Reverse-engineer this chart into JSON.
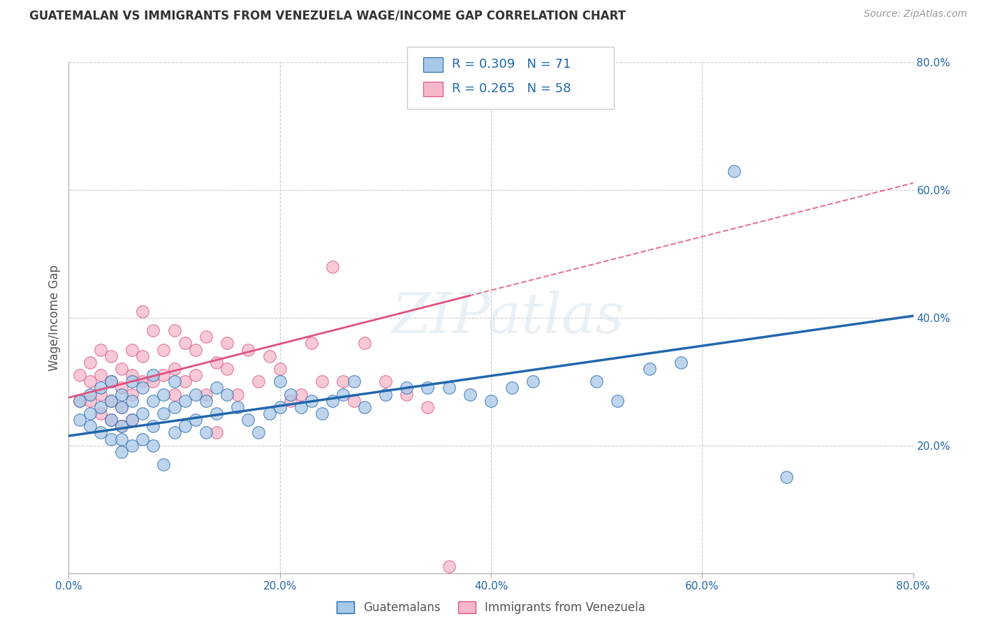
{
  "title": "GUATEMALAN VS IMMIGRANTS FROM VENEZUELA WAGE/INCOME GAP CORRELATION CHART",
  "source": "Source: ZipAtlas.com",
  "ylabel": "Wage/Income Gap",
  "x_min": 0.0,
  "x_max": 0.8,
  "y_min": 0.0,
  "y_max": 0.8,
  "x_ticks": [
    0.0,
    0.2,
    0.4,
    0.6,
    0.8
  ],
  "x_tick_labels": [
    "0.0%",
    "20.0%",
    "40.0%",
    "60.0%",
    "80.0%"
  ],
  "y_ticks": [
    0.2,
    0.4,
    0.6,
    0.8
  ],
  "y_tick_labels": [
    "20.0%",
    "40.0%",
    "60.0%",
    "80.0%"
  ],
  "blue_color": "#a8c8e8",
  "pink_color": "#f4b8c8",
  "blue_line_color": "#2166ac",
  "pink_line_color": "#e05080",
  "R_blue": 0.309,
  "N_blue": 71,
  "R_pink": 0.265,
  "N_pink": 58,
  "legend_label_blue": "Guatemalans",
  "legend_label_pink": "Immigrants from Venezuela",
  "watermark": "ZIPatlas",
  "blue_intercept": 0.215,
  "blue_slope": 0.235,
  "pink_intercept": 0.275,
  "pink_slope": 0.42,
  "blue_x": [
    0.01,
    0.01,
    0.02,
    0.02,
    0.02,
    0.03,
    0.03,
    0.03,
    0.04,
    0.04,
    0.04,
    0.04,
    0.05,
    0.05,
    0.05,
    0.05,
    0.05,
    0.06,
    0.06,
    0.06,
    0.06,
    0.07,
    0.07,
    0.07,
    0.08,
    0.08,
    0.08,
    0.08,
    0.09,
    0.09,
    0.09,
    0.1,
    0.1,
    0.1,
    0.11,
    0.11,
    0.12,
    0.12,
    0.13,
    0.13,
    0.14,
    0.14,
    0.15,
    0.16,
    0.17,
    0.18,
    0.19,
    0.2,
    0.2,
    0.21,
    0.22,
    0.23,
    0.24,
    0.25,
    0.26,
    0.27,
    0.28,
    0.3,
    0.32,
    0.34,
    0.36,
    0.38,
    0.4,
    0.42,
    0.44,
    0.5,
    0.52,
    0.55,
    0.58,
    0.63,
    0.68
  ],
  "blue_y": [
    0.27,
    0.24,
    0.28,
    0.25,
    0.23,
    0.29,
    0.26,
    0.22,
    0.3,
    0.27,
    0.24,
    0.21,
    0.28,
    0.26,
    0.23,
    0.21,
    0.19,
    0.3,
    0.27,
    0.24,
    0.2,
    0.29,
    0.25,
    0.21,
    0.31,
    0.27,
    0.23,
    0.2,
    0.28,
    0.25,
    0.17,
    0.3,
    0.26,
    0.22,
    0.27,
    0.23,
    0.28,
    0.24,
    0.27,
    0.22,
    0.29,
    0.25,
    0.28,
    0.26,
    0.24,
    0.22,
    0.25,
    0.3,
    0.26,
    0.28,
    0.26,
    0.27,
    0.25,
    0.27,
    0.28,
    0.3,
    0.26,
    0.28,
    0.29,
    0.29,
    0.29,
    0.28,
    0.27,
    0.29,
    0.3,
    0.3,
    0.27,
    0.32,
    0.33,
    0.63,
    0.15
  ],
  "pink_x": [
    0.01,
    0.01,
    0.02,
    0.02,
    0.02,
    0.03,
    0.03,
    0.03,
    0.03,
    0.04,
    0.04,
    0.04,
    0.04,
    0.05,
    0.05,
    0.05,
    0.05,
    0.06,
    0.06,
    0.06,
    0.06,
    0.07,
    0.07,
    0.07,
    0.08,
    0.08,
    0.09,
    0.09,
    0.1,
    0.1,
    0.1,
    0.11,
    0.11,
    0.12,
    0.12,
    0.13,
    0.13,
    0.14,
    0.14,
    0.15,
    0.15,
    0.16,
    0.17,
    0.18,
    0.19,
    0.2,
    0.21,
    0.22,
    0.23,
    0.24,
    0.25,
    0.26,
    0.27,
    0.28,
    0.3,
    0.32,
    0.34,
    0.36
  ],
  "pink_y": [
    0.31,
    0.27,
    0.33,
    0.3,
    0.27,
    0.35,
    0.31,
    0.28,
    0.25,
    0.34,
    0.3,
    0.27,
    0.24,
    0.32,
    0.29,
    0.26,
    0.23,
    0.35,
    0.31,
    0.28,
    0.24,
    0.41,
    0.34,
    0.3,
    0.38,
    0.3,
    0.35,
    0.31,
    0.32,
    0.38,
    0.28,
    0.36,
    0.3,
    0.35,
    0.31,
    0.37,
    0.28,
    0.33,
    0.22,
    0.36,
    0.32,
    0.28,
    0.35,
    0.3,
    0.34,
    0.32,
    0.27,
    0.28,
    0.36,
    0.3,
    0.48,
    0.3,
    0.27,
    0.36,
    0.3,
    0.28,
    0.26,
    0.01
  ]
}
